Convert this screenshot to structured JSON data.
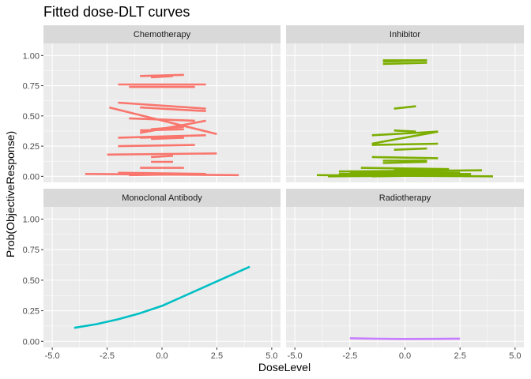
{
  "chart_data": {
    "type": "line",
    "title": "Fitted dose-DLT curves",
    "xlabel": "DoseLevel",
    "ylabel": "Prob(ObjectiveResponse)",
    "xlim": [
      -5.4,
      5.4
    ],
    "ylim": [
      -0.05,
      1.1
    ],
    "x_ticks": [
      -5.0,
      -2.5,
      0.0,
      2.5,
      5.0
    ],
    "x_tick_labels": [
      "-5.0",
      "-2.5",
      "0.0",
      "2.5",
      "5.0"
    ],
    "y_ticks": [
      0.0,
      0.25,
      0.5,
      0.75,
      1.0
    ],
    "y_tick_labels": [
      "0.00",
      "0.25",
      "0.50",
      "0.75",
      "1.00"
    ],
    "grid": true,
    "legend": "none",
    "panels": [
      {
        "name": "Chemotherapy",
        "color": "#F8766D",
        "series": [
          {
            "x": [
              -1.0,
              1.0
            ],
            "y": [
              0.83,
              0.84
            ]
          },
          {
            "x": [
              -0.5,
              0.5
            ],
            "y": [
              0.82,
              0.83
            ]
          },
          {
            "x": [
              -2.0,
              2.0
            ],
            "y": [
              0.76,
              0.76
            ]
          },
          {
            "x": [
              -1.5,
              1.5
            ],
            "y": [
              0.74,
              0.74
            ]
          },
          {
            "x": [
              -2.0,
              2.0
            ],
            "y": [
              0.61,
              0.56
            ]
          },
          {
            "x": [
              -2.4,
              2.5
            ],
            "y": [
              0.57,
              0.35
            ]
          },
          {
            "x": [
              -1.0,
              2.0
            ],
            "y": [
              0.57,
              0.54
            ]
          },
          {
            "x": [
              -1.5,
              1.5
            ],
            "y": [
              0.48,
              0.46
            ]
          },
          {
            "x": [
              -1.0,
              2.0
            ],
            "y": [
              0.36,
              0.46
            ]
          },
          {
            "x": [
              -1.0,
              1.0
            ],
            "y": [
              0.38,
              0.39
            ]
          },
          {
            "x": [
              -0.5,
              1.0
            ],
            "y": [
              0.39,
              0.41
            ]
          },
          {
            "x": [
              -1.0,
              1.0
            ],
            "y": [
              0.32,
              0.33
            ]
          },
          {
            "x": [
              -2.0,
              2.0
            ],
            "y": [
              0.32,
              0.34
            ]
          },
          {
            "x": [
              -0.5,
              1.0
            ],
            "y": [
              0.31,
              0.32
            ]
          },
          {
            "x": [
              -2.0,
              1.5
            ],
            "y": [
              0.25,
              0.26
            ]
          },
          {
            "x": [
              -2.5,
              2.5
            ],
            "y": [
              0.18,
              0.19
            ]
          },
          {
            "x": [
              -0.5,
              0.5
            ],
            "y": [
              0.16,
              0.17
            ]
          },
          {
            "x": [
              -0.5,
              0.5
            ],
            "y": [
              0.12,
              0.12
            ]
          },
          {
            "x": [
              -1.0,
              1.0
            ],
            "y": [
              0.07,
              0.07
            ]
          },
          {
            "x": [
              -2.0,
              2.0
            ],
            "y": [
              0.03,
              0.02
            ]
          },
          {
            "x": [
              -3.5,
              3.5
            ],
            "y": [
              0.02,
              0.01
            ]
          },
          {
            "x": [
              -1.5,
              2.0
            ],
            "y": [
              0.01,
              0.02
            ]
          }
        ]
      },
      {
        "name": "Inhibitor",
        "color": "#7CAE00",
        "series": [
          {
            "x": [
              -1.0,
              1.0
            ],
            "y": [
              0.96,
              0.96
            ]
          },
          {
            "x": [
              -1.0,
              1.0
            ],
            "y": [
              0.95,
              0.96
            ]
          },
          {
            "x": [
              -1.0,
              1.0
            ],
            "y": [
              0.93,
              0.94
            ]
          },
          {
            "x": [
              -0.5,
              0.5
            ],
            "y": [
              0.56,
              0.58
            ]
          },
          {
            "x": [
              -0.5,
              0.5
            ],
            "y": [
              0.38,
              0.37
            ]
          },
          {
            "x": [
              -1.5,
              1.5
            ],
            "y": [
              0.34,
              0.37
            ]
          },
          {
            "x": [
              -1.5,
              1.5
            ],
            "y": [
              0.27,
              0.37
            ]
          },
          {
            "x": [
              -1.5,
              1.5
            ],
            "y": [
              0.26,
              0.27
            ]
          },
          {
            "x": [
              -0.5,
              1.0
            ],
            "y": [
              0.22,
              0.23
            ]
          },
          {
            "x": [
              -1.5,
              1.5
            ],
            "y": [
              0.16,
              0.15
            ]
          },
          {
            "x": [
              -1.0,
              1.0
            ],
            "y": [
              0.13,
              0.13
            ]
          },
          {
            "x": [
              -1.0,
              1.0
            ],
            "y": [
              0.11,
              0.12
            ]
          },
          {
            "x": [
              -2.0,
              2.0
            ],
            "y": [
              0.07,
              0.06
            ]
          },
          {
            "x": [
              -0.5,
              1.0
            ],
            "y": [
              0.05,
              0.06
            ]
          },
          {
            "x": [
              -3.0,
              3.5
            ],
            "y": [
              0.04,
              0.05
            ]
          },
          {
            "x": [
              -2.5,
              2.5
            ],
            "y": [
              0.03,
              0.03
            ]
          },
          {
            "x": [
              -3.0,
              3.0
            ],
            "y": [
              0.02,
              0.02
            ]
          },
          {
            "x": [
              -2.0,
              2.0
            ],
            "y": [
              0.02,
              0.01
            ]
          },
          {
            "x": [
              -4.0,
              4.0
            ],
            "y": [
              0.01,
              0.0
            ]
          },
          {
            "x": [
              -3.5,
              3.0
            ],
            "y": [
              0.0,
              0.01
            ]
          },
          {
            "x": [
              -1.5,
              2.0
            ],
            "y": [
              0.0,
              0.01
            ]
          }
        ]
      },
      {
        "name": "Monoclonal Antibody",
        "color": "#00BFC4",
        "series": [
          {
            "x": [
              -4.0,
              -3.0,
              -2.0,
              -1.0,
              0.0,
              1.0,
              2.0,
              3.0,
              4.0
            ],
            "y": [
              0.11,
              0.14,
              0.18,
              0.23,
              0.29,
              0.37,
              0.45,
              0.53,
              0.61
            ]
          }
        ]
      },
      {
        "name": "Radiotherapy",
        "color": "#C77CFF",
        "series": [
          {
            "x": [
              -2.5,
              -1.25,
              0.0,
              1.25,
              2.5
            ],
            "y": [
              0.025,
              0.021,
              0.019,
              0.02,
              0.022
            ]
          }
        ]
      }
    ]
  }
}
